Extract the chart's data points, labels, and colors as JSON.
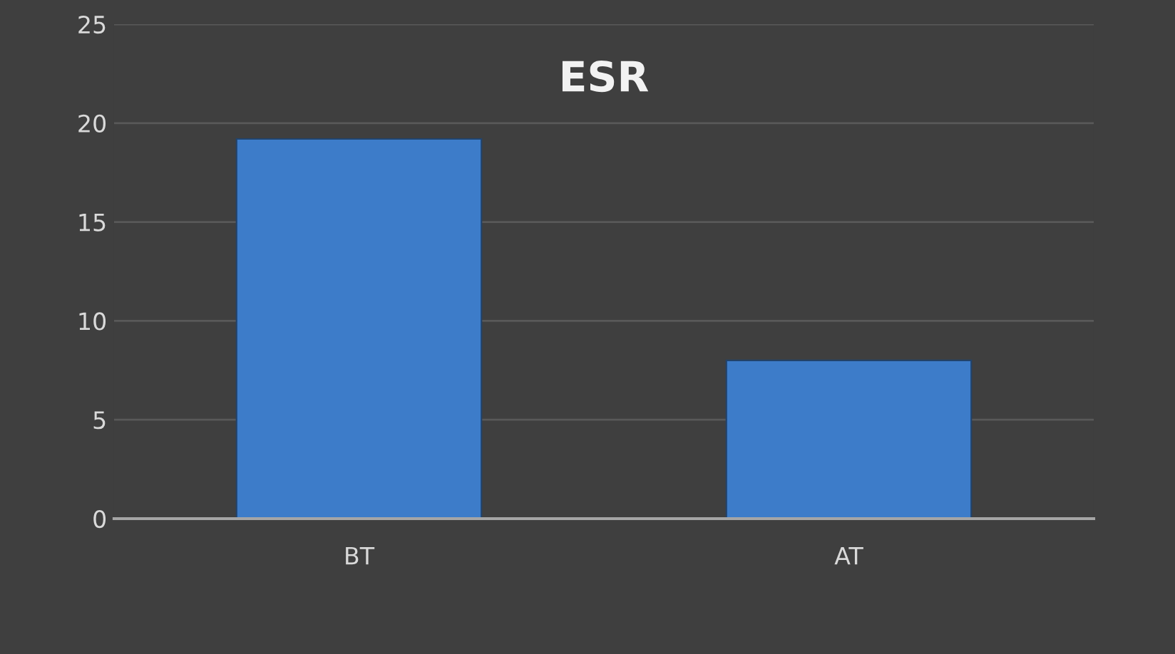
{
  "chart_data": {
    "type": "bar",
    "title": "ESR",
    "categories": [
      "BT",
      "AT"
    ],
    "series": [
      {
        "color": "#3d7cc9",
        "values": [
          19.2,
          8.0
        ]
      }
    ],
    "ylim": [
      0,
      25
    ],
    "yticks": [
      0,
      5,
      10,
      15,
      20,
      25
    ],
    "grid": "y"
  }
}
